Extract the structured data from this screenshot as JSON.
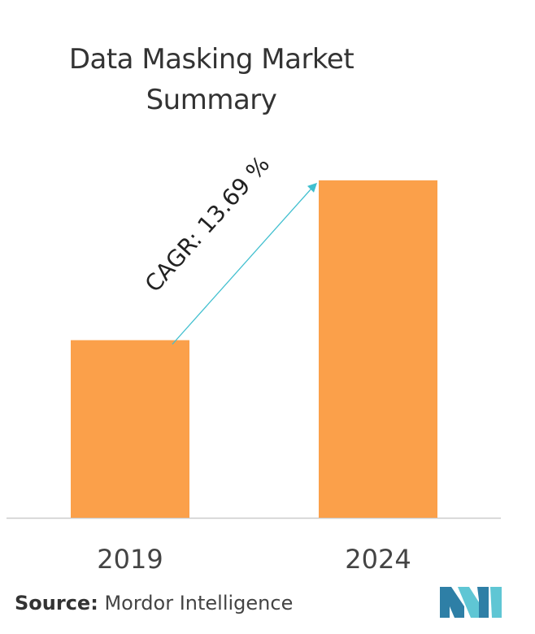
{
  "title_line1": "Data Masking Market",
  "title_line2": "Summary",
  "chart_data": {
    "type": "bar",
    "title": "Data Masking Market Summary",
    "categories": [
      "2019",
      "2024"
    ],
    "values": [
      1.0,
      1.9
    ],
    "annotation": "CAGR: 13.69 %",
    "bar_color": "#FBA04A",
    "arrow_color": "#40BFCF",
    "axis_color": "#cccccc",
    "ylim": [
      0,
      2.0
    ]
  },
  "source": {
    "label": "Source:",
    "text": "Mordor Intelligence"
  },
  "logo": {
    "name": "mordor-intelligence-logo",
    "colors": [
      "#2E7FA6",
      "#5FC6D4"
    ]
  }
}
